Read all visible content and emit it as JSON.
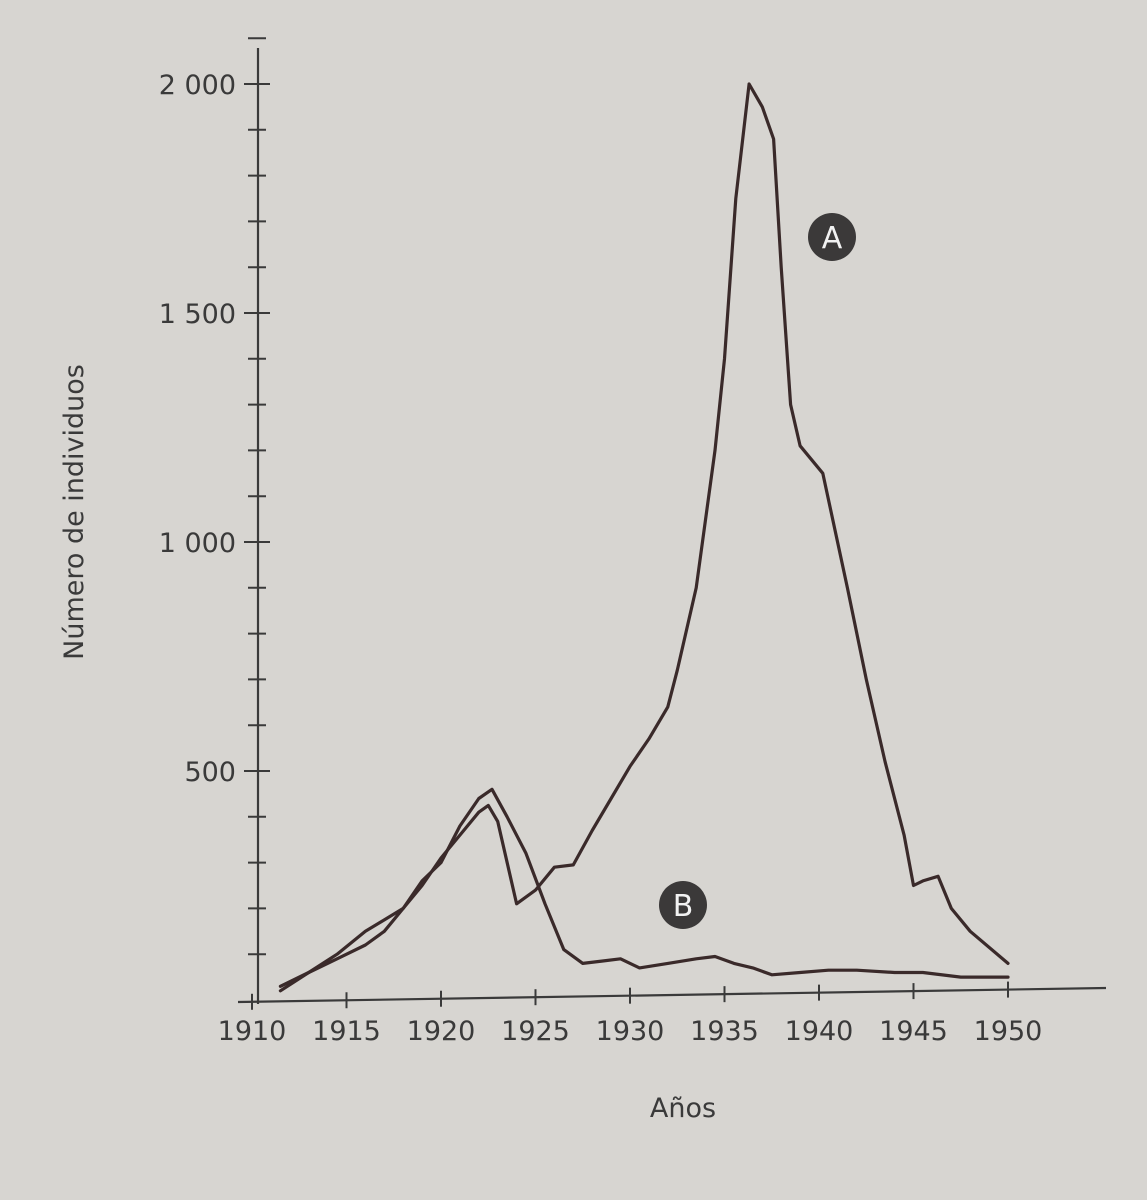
{
  "chart_data": {
    "type": "line",
    "title": "",
    "xlabel": "Años",
    "ylabel": "Número de individuos",
    "xlim": [
      1910,
      1950
    ],
    "ylim": [
      0,
      2100
    ],
    "x_ticks": [
      1910,
      1915,
      1920,
      1925,
      1930,
      1935,
      1940,
      1945,
      1950
    ],
    "x_tick_labels": [
      "1910",
      "1915",
      "1920",
      "1925",
      "1930",
      "1935",
      "1940",
      "1945",
      "1950"
    ],
    "y_ticks": [
      500,
      1000,
      1500,
      2000
    ],
    "y_tick_labels": [
      "500",
      "1 000",
      "1 500",
      "2 000"
    ],
    "y_minor_step": 100,
    "grid": false,
    "series": [
      {
        "name": "A",
        "x": [
          1911.5,
          1913,
          1914.5,
          1916,
          1917,
          1918,
          1919,
          1920,
          1921,
          1922,
          1922.5,
          1923,
          1924,
          1925,
          1926,
          1927,
          1928,
          1929,
          1930,
          1931,
          1932,
          1932.5,
          1933.5,
          1934.5,
          1935,
          1935.6,
          1936.3,
          1937,
          1937.6,
          1938,
          1938.5,
          1939,
          1940.2,
          1941.5,
          1942.5,
          1943.5,
          1944.5,
          1945,
          1945.5,
          1946.3,
          1947,
          1948,
          1950
        ],
        "values": [
          20,
          60,
          100,
          150,
          175,
          200,
          250,
          310,
          360,
          410,
          425,
          390,
          210,
          240,
          290,
          295,
          370,
          440,
          510,
          570,
          640,
          720,
          900,
          1200,
          1400,
          1750,
          2000,
          1950,
          1880,
          1600,
          1300,
          1210,
          1150,
          900,
          700,
          520,
          360,
          250,
          260,
          270,
          200,
          150,
          80
        ]
      },
      {
        "name": "B",
        "x": [
          1911.5,
          1913,
          1914.5,
          1916,
          1917,
          1918,
          1919,
          1920,
          1921,
          1922,
          1922.7,
          1923.5,
          1924.5,
          1925.5,
          1926.5,
          1927.5,
          1928.5,
          1929.5,
          1930.5,
          1932,
          1933.5,
          1934.5,
          1935.5,
          1936.5,
          1937.5,
          1939,
          1940.5,
          1942,
          1944,
          1945.5,
          1947.5,
          1950
        ],
        "values": [
          30,
          60,
          90,
          120,
          150,
          200,
          260,
          300,
          380,
          440,
          460,
          400,
          320,
          210,
          110,
          80,
          85,
          90,
          70,
          80,
          90,
          95,
          80,
          70,
          55,
          60,
          65,
          65,
          60,
          60,
          50,
          50
        ]
      }
    ],
    "annotations": [
      "A",
      "B"
    ]
  }
}
